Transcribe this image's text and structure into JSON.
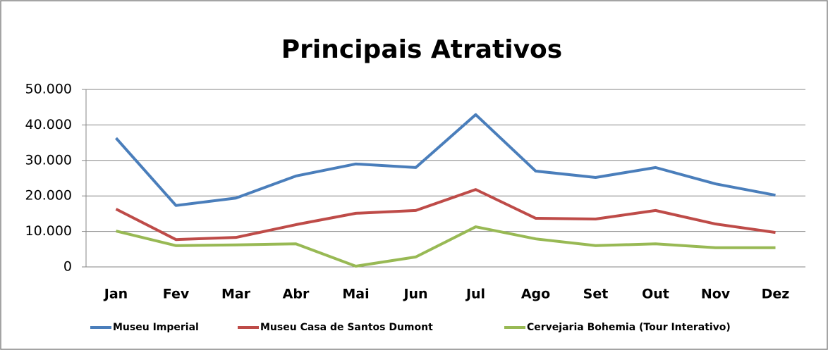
{
  "chart_data": {
    "type": "line",
    "title": "Principais Atrativos",
    "categories": [
      "Jan",
      "Fev",
      "Mar",
      "Abr",
      "Mai",
      "Jun",
      "Jul",
      "Ago",
      "Set",
      "Out",
      "Nov",
      "Dez"
    ],
    "series": [
      {
        "name": "Museu Imperial",
        "color": "#4a7ebb",
        "values": [
          36300,
          17300,
          19400,
          25600,
          29000,
          28000,
          42900,
          27000,
          25200,
          28000,
          23400,
          20200
        ]
      },
      {
        "name": "Museu Casa de Santos Dumont",
        "color": "#be4b48",
        "values": [
          16300,
          7700,
          8300,
          11900,
          15100,
          15900,
          21800,
          13700,
          13500,
          15900,
          12100,
          9700
        ]
      },
      {
        "name": "Cervejaria Bohemia (Tour Interativo)",
        "color": "#98b954",
        "values": [
          10100,
          6000,
          6200,
          6500,
          200,
          2800,
          11300,
          7900,
          6000,
          6500,
          5400,
          5400
        ]
      }
    ],
    "ylim": [
      0,
      50000
    ],
    "yticks": [
      0,
      {
        "value": 10000,
        "label": "10.000"
      },
      {
        "value": 20000,
        "label": "20.000"
      },
      {
        "value": 30000,
        "label": "30.000"
      },
      {
        "value": 40000,
        "label": "40.000"
      },
      {
        "value": 50000,
        "label": "50.000"
      }
    ],
    "grid": true,
    "legend": "bottom"
  }
}
